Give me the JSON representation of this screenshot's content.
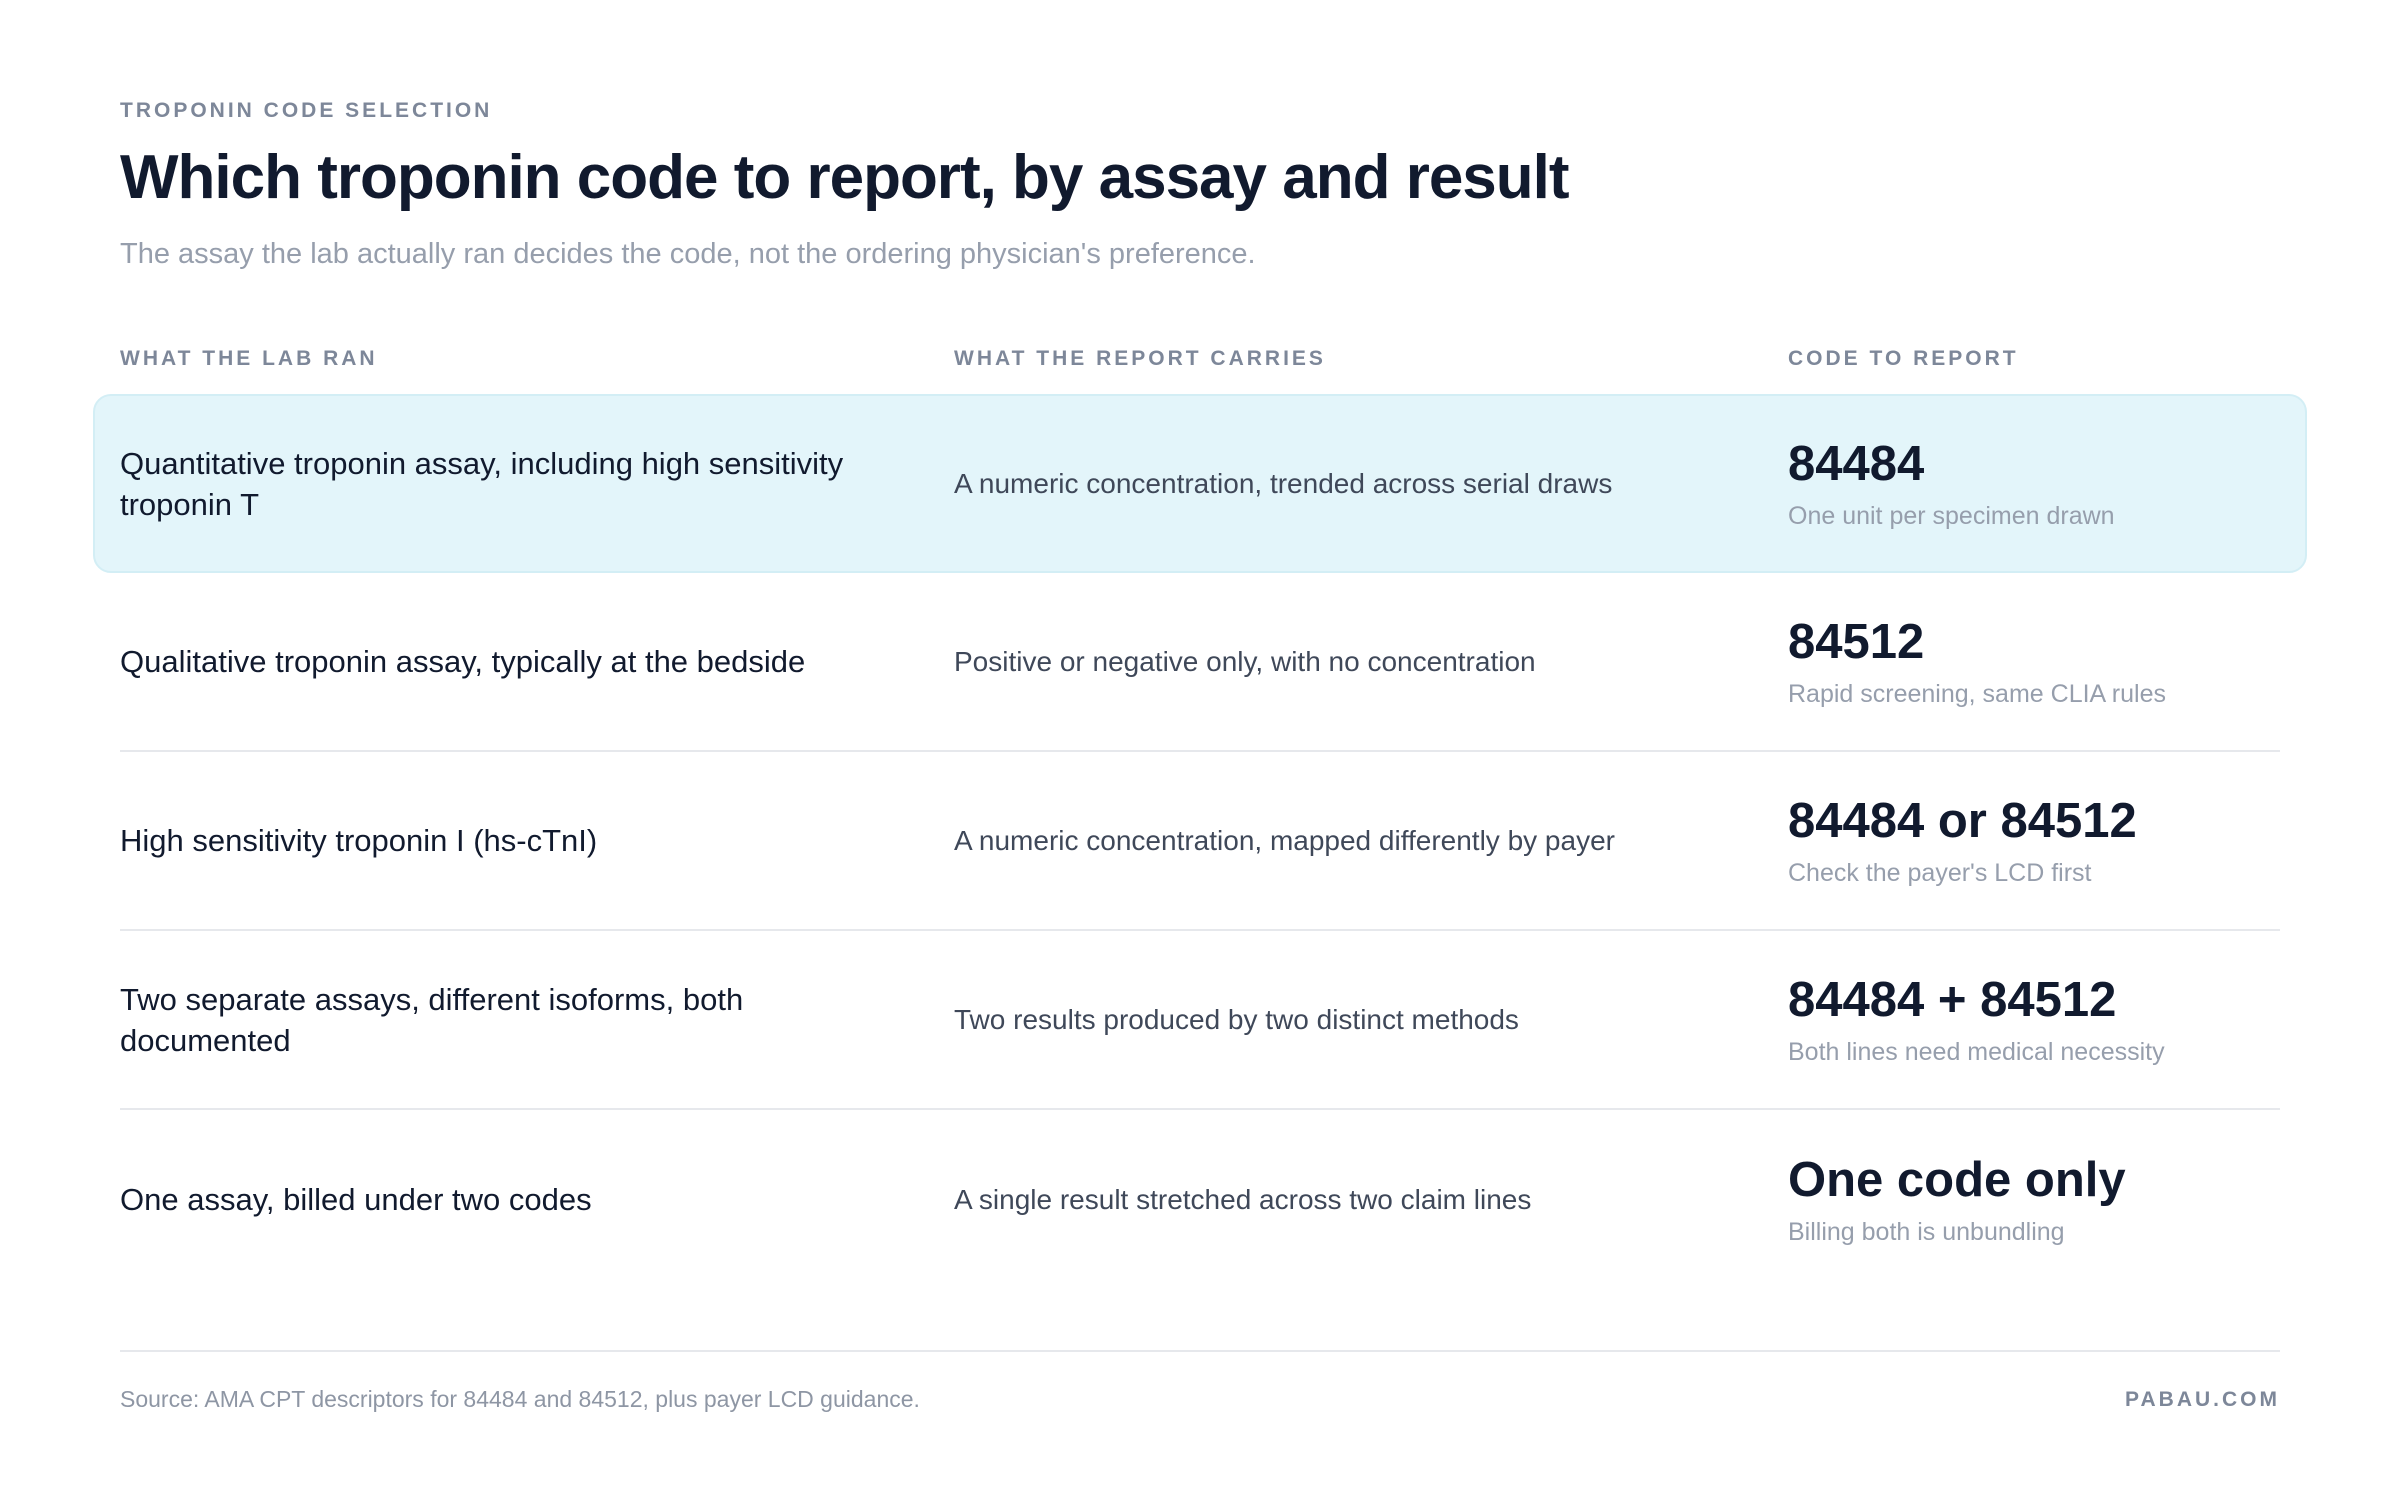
{
  "header": {
    "eyebrow": "TROPONIN CODE SELECTION",
    "title": "Which troponin code to report, by assay and result",
    "subtitle": "The assay the lab actually ran decides the code, not the ordering physician's preference."
  },
  "table": {
    "columns": [
      "WHAT THE LAB RAN",
      "WHAT THE REPORT CARRIES",
      "CODE TO REPORT"
    ],
    "highlight_color": "#e3f5fa",
    "rows": [
      {
        "assay": "Quantitative troponin assay, including high sensitivity troponin T",
        "carries": "A numeric concentration, trended across serial draws",
        "code": "84484",
        "note": "One unit per specimen drawn",
        "highlighted": true
      },
      {
        "assay": "Qualitative troponin assay, typically at the bedside",
        "carries": "Positive or negative only, with no concentration",
        "code": "84512",
        "note": "Rapid screening, same CLIA rules",
        "highlighted": false
      },
      {
        "assay": "High sensitivity troponin I (hs-cTnI)",
        "carries": "A numeric concentration, mapped differently by payer",
        "code": "84484 or 84512",
        "note": "Check the payer's LCD first",
        "highlighted": false
      },
      {
        "assay": "Two separate assays, different isoforms, both documented",
        "carries": "Two results produced by two distinct methods",
        "code": "84484 + 84512",
        "note": "Both lines need medical necessity",
        "highlighted": false
      },
      {
        "assay": "One assay, billed under two codes",
        "carries": "A single result stretched across two claim lines",
        "code": "One code only",
        "note": "Billing both is unbundling",
        "highlighted": false
      }
    ]
  },
  "footer": {
    "source": "Source: AMA CPT descriptors for 84484 and 84512, plus payer LCD guidance.",
    "brand": "PABAU.COM"
  }
}
